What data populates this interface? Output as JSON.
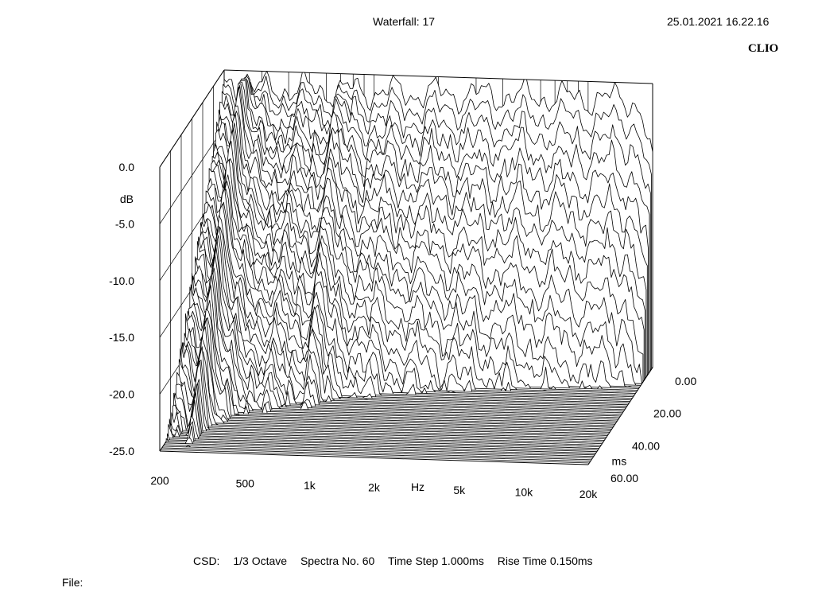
{
  "header": {
    "title": "Waterfall: 17",
    "timestamp": "25.01.2021 16.22.16",
    "brand": "CLIO"
  },
  "footer": {
    "analysis": "CSD:",
    "resolution": "1/3 Octave",
    "spectra": "Spectra No. 60",
    "time_step": "Time Step 1.000ms",
    "rise_time": "Rise Time 0.150ms",
    "file_label": "File:"
  },
  "chart_data": {
    "type": "waterfall",
    "title": "Waterfall: 17",
    "xlabel": "Hz",
    "ylabel": "dB",
    "zlabel": "ms",
    "x_scale": "log",
    "xlim": [
      200,
      20000
    ],
    "ylim": [
      -25,
      0
    ],
    "zlim": [
      0,
      60
    ],
    "x_ticks": [
      "200",
      "500",
      "1k",
      "2k",
      "5k",
      "10k",
      "20k"
    ],
    "y_ticks": [
      "0.0",
      "-5.0",
      "-10.0",
      "-15.0",
      "-20.0",
      "-25.0"
    ],
    "z_ticks": [
      "0.00",
      "20.00",
      "40.00",
      "60.00"
    ],
    "spectra_count": 60,
    "time_step_ms": 1.0,
    "rise_time_ms": 0.15,
    "line_color": "#000000",
    "background": "#ffffff"
  }
}
